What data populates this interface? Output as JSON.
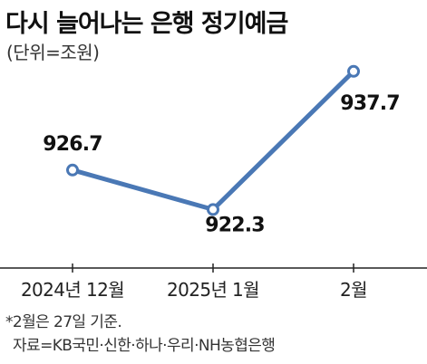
{
  "chart_data": {
    "type": "line",
    "title": "다시 늘어나는 은행 정기예금",
    "unit_label": "(단위=조원)",
    "categories": [
      "2024년 12월",
      "2025년 1월",
      "2월"
    ],
    "series": [
      {
        "values": [
          926.7,
          922.3,
          937.7
        ],
        "value_labels": [
          "926.7",
          "922.3",
          "937.7"
        ]
      }
    ],
    "ylim": [
      918,
      940
    ],
    "grid": false,
    "colors": {
      "line": "#4a78b5",
      "marker_fill": "#ffffff",
      "axis": "#222222"
    },
    "notes": [
      "*2월은 27일 기준.",
      "자료=KB국민·신한·하나·우리·NH농협은행"
    ]
  }
}
